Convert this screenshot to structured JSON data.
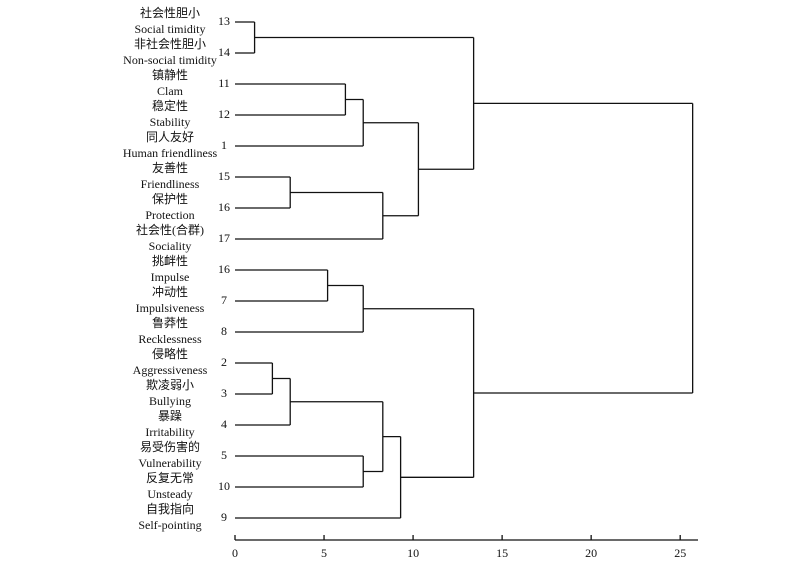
{
  "chart_data": {
    "type": "dendrogram",
    "leaves": [
      {
        "label_cn": "社会性胆小",
        "label_en": "Social timidity",
        "id": 13
      },
      {
        "label_cn": "非社会性胆小",
        "label_en": "Non-social timidity",
        "id": 14
      },
      {
        "label_cn": "镇静性",
        "label_en": "Clam",
        "id": 11
      },
      {
        "label_cn": "稳定性",
        "label_en": "Stability",
        "id": 12
      },
      {
        "label_cn": "同人友好",
        "label_en": "Human friendliness",
        "id": 1
      },
      {
        "label_cn": "友善性",
        "label_en": "Friendliness",
        "id": 15
      },
      {
        "label_cn": "保护性",
        "label_en": "Protection",
        "id": 16
      },
      {
        "label_cn": "社会性(合群)",
        "label_en": "Sociality",
        "id": 17
      },
      {
        "label_cn": "挑衅性",
        "label_en": "Impulse",
        "id": 16
      },
      {
        "label_cn": "冲动性",
        "label_en": "Impulsiveness",
        "id": 7
      },
      {
        "label_cn": "鲁莽性",
        "label_en": "Recklessness",
        "id": 8
      },
      {
        "label_cn": "侵略性",
        "label_en": "Aggressiveness",
        "id": 2
      },
      {
        "label_cn": "欺凌弱小",
        "label_en": "Bullying",
        "id": 3
      },
      {
        "label_cn": "暴躁",
        "label_en": "Irritability",
        "id": 4
      },
      {
        "label_cn": "易受伤害的",
        "label_en": "Vulnerability",
        "id": 5
      },
      {
        "label_cn": "反复无常",
        "label_en": "Unsteady",
        "id": 10
      },
      {
        "label_cn": "自我指向",
        "label_en": "Self-pointing",
        "id": 9
      }
    ],
    "tree": {
      "height": 25.7,
      "children": [
        {
          "height": 13.4,
          "children": [
            {
              "height": 1.1,
              "children": [
                {
                  "leaf": 0
                },
                {
                  "leaf": 1
                }
              ]
            },
            {
              "height": 10.3,
              "children": [
                {
                  "height": 7.2,
                  "children": [
                    {
                      "height": 6.2,
                      "children": [
                        {
                          "leaf": 2
                        },
                        {
                          "leaf": 3
                        }
                      ]
                    },
                    {
                      "leaf": 4
                    }
                  ]
                },
                {
                  "height": 8.3,
                  "children": [
                    {
                      "height": 3.1,
                      "children": [
                        {
                          "leaf": 5
                        },
                        {
                          "leaf": 6
                        }
                      ]
                    },
                    {
                      "leaf": 7
                    }
                  ]
                }
              ]
            }
          ]
        },
        {
          "height": 13.4,
          "children": [
            {
              "height": 7.2,
              "children": [
                {
                  "height": 5.2,
                  "children": [
                    {
                      "leaf": 8
                    },
                    {
                      "leaf": 9
                    }
                  ]
                },
                {
                  "leaf": 10
                }
              ]
            },
            {
              "height": 9.3,
              "children": [
                {
                  "height": 8.3,
                  "children": [
                    {
                      "height": 3.1,
                      "children": [
                        {
                          "height": 2.1,
                          "children": [
                            {
                              "leaf": 11
                            },
                            {
                              "leaf": 12
                            }
                          ]
                        },
                        {
                          "leaf": 13
                        }
                      ]
                    },
                    {
                      "height": 7.2,
                      "children": [
                        {
                          "leaf": 14
                        },
                        {
                          "leaf": 15
                        }
                      ]
                    }
                  ]
                },
                {
                  "leaf": 16
                }
              ]
            }
          ]
        }
      ]
    },
    "xlim": [
      0,
      26
    ],
    "xticks": [
      0,
      5,
      10,
      15,
      20,
      25
    ]
  }
}
